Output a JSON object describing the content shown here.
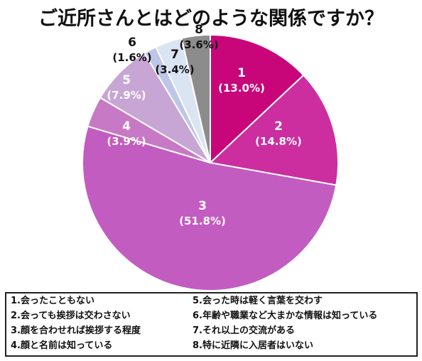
{
  "title": "ご近所さんとはどのような関係ですか？",
  "chart_data": {
    "type": "pie",
    "title": "ご近所さんとはどのような関係ですか？",
    "slices": [
      {
        "label": "1",
        "value": 13.0,
        "value_text": "(13.0%)",
        "color": "#c8067a"
      },
      {
        "label": "2",
        "value": 14.8,
        "value_text": "(14.8%)",
        "color": "#cc2ea0"
      },
      {
        "label": "3",
        "value": 51.8,
        "value_text": "(51.8%)",
        "color": "#c35cc0"
      },
      {
        "label": "4",
        "value": 3.9,
        "value_text": "(3.9%)",
        "color": "#c779c5"
      },
      {
        "label": "5",
        "value": 7.9,
        "value_text": "(7.9%)",
        "color": "#c7a6d6"
      },
      {
        "label": "6",
        "value": 1.6,
        "value_text": "(1.6%)",
        "color": "#bdc6e6"
      },
      {
        "label": "7",
        "value": 3.4,
        "value_text": "(3.4%)",
        "color": "#dbe4f3"
      },
      {
        "label": "8",
        "value": 3.6,
        "value_text": "(3.6%)",
        "color": "#8c8c8c"
      }
    ],
    "legend": [
      "1.会ったこともない",
      "2.会っても挨拶は交わさない",
      "3.顔を合わせれば挨拶する程度",
      "4.顔と名前は知っている",
      "5.会った時は軽く言葉を交わす",
      "6.年齢や職業など大まかな情報は知っている",
      "7.それ以上の交流がある",
      "8.特に近隣に入居者はいない"
    ],
    "legend_position": "bottom"
  }
}
